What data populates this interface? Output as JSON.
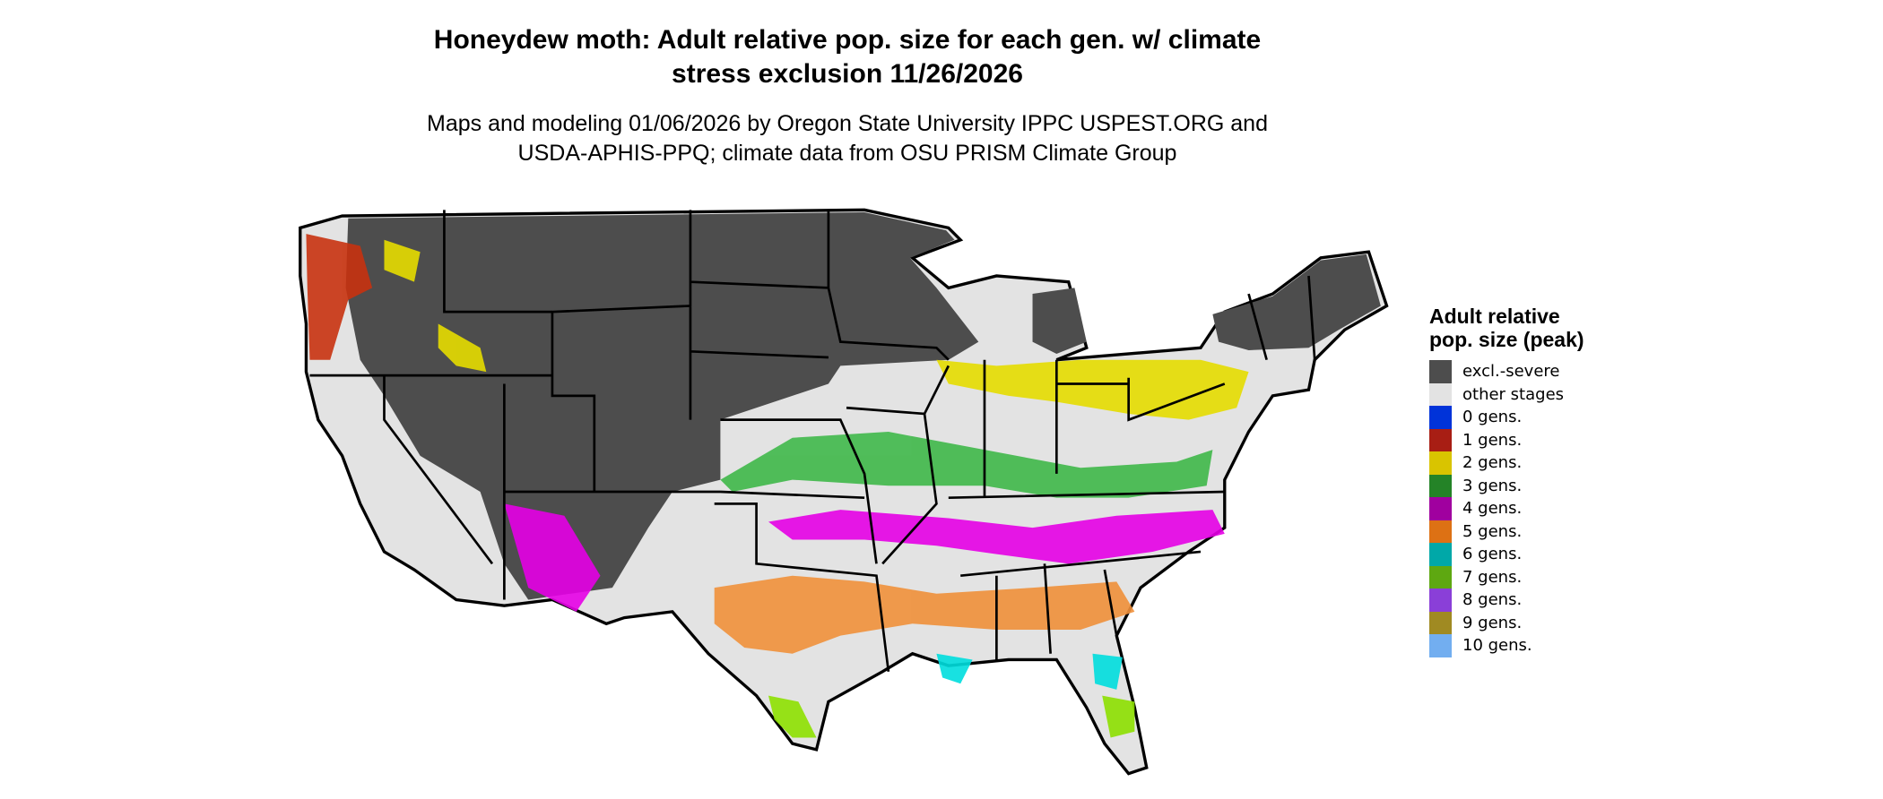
{
  "title": "Honeydew moth: Adult relative pop. size for each gen. w/ climate stress exclusion 11/26/2026",
  "title_line1": "Honeydew moth: Adult relative pop. size for each gen. w/ climate",
  "title_line2": "stress exclusion 11/26/2026",
  "subtitle_line1": "Maps and modeling 01/06/2026 by Oregon State University IPPC USPEST.ORG and",
  "subtitle_line2": "USDA-APHIS-PPQ; climate data from OSU PRISM Climate Group",
  "legend": {
    "title": "Adult relative pop. size (peak)",
    "items": [
      {
        "label": "excl.-severe",
        "color": "#4d4d4d"
      },
      {
        "label": "other stages",
        "color": "#e3e3e3"
      },
      {
        "label": "0 gens.",
        "color": "#0033d9"
      },
      {
        "label": "1 gens.",
        "color": "#a81e14"
      },
      {
        "label": "2 gens.",
        "color": "#d9c400"
      },
      {
        "label": "3 gens.",
        "color": "#248327"
      },
      {
        "label": "4 gens.",
        "color": "#a0009f"
      },
      {
        "label": "5 gens.",
        "color": "#dd7114"
      },
      {
        "label": "6 gens.",
        "color": "#00a8a8"
      },
      {
        "label": "7 gens.",
        "color": "#5ea811"
      },
      {
        "label": "8 gens.",
        "color": "#8a3fd8"
      },
      {
        "label": "9 gens.",
        "color": "#a08a22"
      },
      {
        "label": "10 gens.",
        "color": "#72aef0"
      }
    ]
  }
}
